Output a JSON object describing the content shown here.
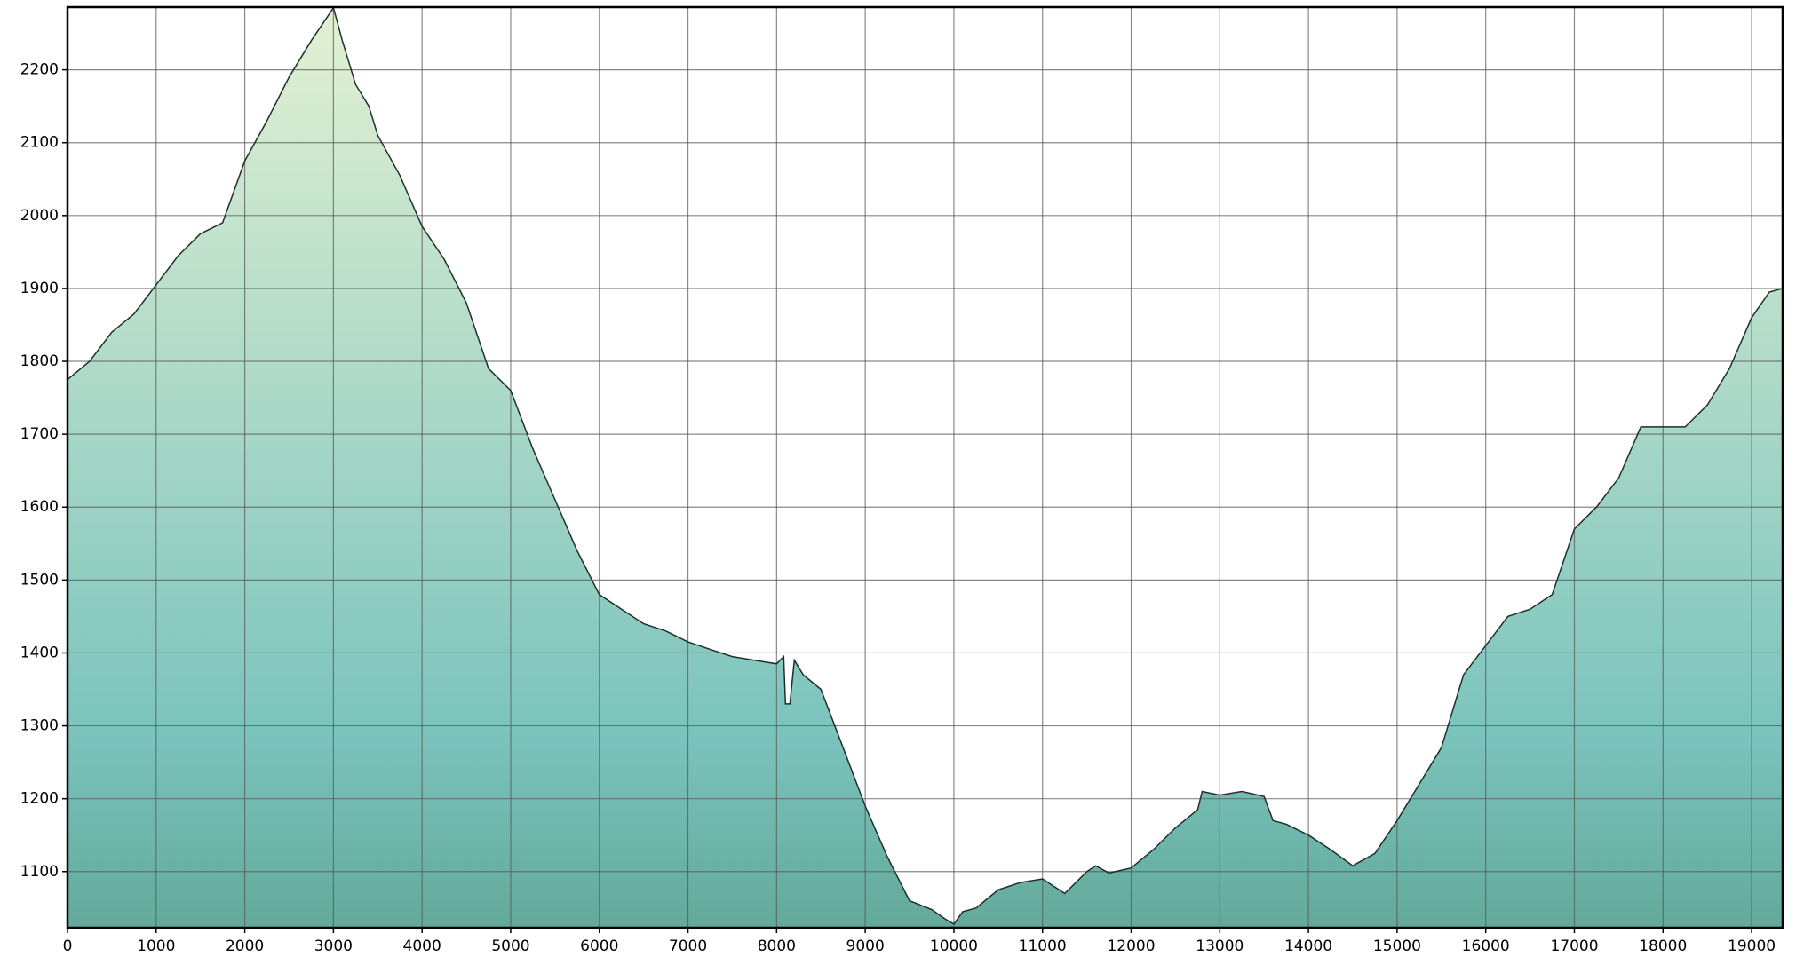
{
  "chart_data": {
    "type": "area",
    "x": [
      0,
      250,
      500,
      750,
      1000,
      1250,
      1500,
      1750,
      2000,
      2250,
      2500,
      2750,
      3000,
      3100,
      3250,
      3400,
      3500,
      3750,
      4000,
      4250,
      4500,
      4750,
      5000,
      5250,
      5500,
      5750,
      6000,
      6250,
      6500,
      6750,
      7000,
      7250,
      7500,
      7750,
      8000,
      8080,
      8100,
      8150,
      8200,
      8300,
      8500,
      8750,
      9000,
      9250,
      9500,
      9750,
      9900,
      10000,
      10100,
      10250,
      10500,
      10750,
      11000,
      11250,
      11500,
      11600,
      11750,
      12000,
      12250,
      12500,
      12750,
      12800,
      13000,
      13250,
      13500,
      13600,
      13750,
      14000,
      14250,
      14500,
      14750,
      15000,
      15250,
      15500,
      15750,
      16000,
      16250,
      16500,
      16750,
      17000,
      17250,
      17500,
      17750,
      18000,
      18250,
      18500,
      18750,
      19000,
      19200,
      19350
    ],
    "values": [
      1775,
      1800,
      1840,
      1865,
      1905,
      1945,
      1975,
      1990,
      2075,
      2130,
      2190,
      2240,
      2285,
      2240,
      2180,
      2150,
      2110,
      2055,
      1985,
      1940,
      1880,
      1790,
      1760,
      1680,
      1610,
      1540,
      1480,
      1460,
      1440,
      1430,
      1415,
      1405,
      1395,
      1390,
      1385,
      1395,
      1330,
      1330,
      1390,
      1370,
      1350,
      1270,
      1190,
      1120,
      1060,
      1048,
      1035,
      1028,
      1045,
      1050,
      1075,
      1085,
      1090,
      1070,
      1100,
      1108,
      1098,
      1105,
      1130,
      1160,
      1185,
      1210,
      1205,
      1210,
      1203,
      1170,
      1165,
      1150,
      1130,
      1108,
      1125,
      1170,
      1220,
      1270,
      1370,
      1410,
      1450,
      1460,
      1480,
      1570,
      1600,
      1640,
      1710,
      1710,
      1710,
      1740,
      1790,
      1860,
      1895,
      1900
    ],
    "xlim": [
      0,
      19350
    ],
    "ylim": [
      1023,
      2286
    ],
    "xticks": [
      0,
      1000,
      2000,
      3000,
      4000,
      5000,
      6000,
      7000,
      8000,
      9000,
      10000,
      11000,
      12000,
      13000,
      14000,
      15000,
      16000,
      17000,
      18000,
      19000
    ],
    "yticks": [
      1100,
      1200,
      1300,
      1400,
      1500,
      1600,
      1700,
      1800,
      1900,
      2000,
      2100,
      2200
    ],
    "grid": true,
    "line_color": "#1f2f2a",
    "fill_gradient": [
      "#e3f1d3",
      "#7cc4be",
      "#63aa9b"
    ]
  }
}
